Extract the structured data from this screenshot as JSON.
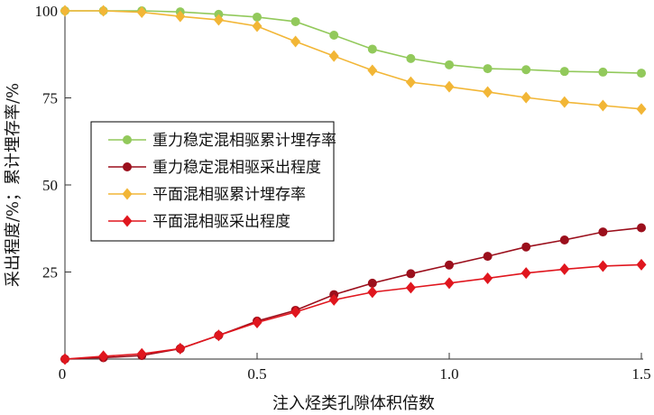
{
  "chart_data": {
    "type": "line",
    "title": "",
    "xlabel": "注入烃类孔隙体积倍数",
    "ylabel": "采出程度/%；累计埋存率/%",
    "xlim": [
      0,
      1.5
    ],
    "ylim": [
      0,
      100
    ],
    "xticks": [
      "0",
      "0.5",
      "1.0",
      "1.5"
    ],
    "xtick_values": [
      0,
      0.5,
      1.0,
      1.5
    ],
    "yticks": [
      "100",
      "75",
      "50",
      "25"
    ],
    "ytick_values": [
      100,
      75,
      50,
      25
    ],
    "legend_position": "center-left",
    "x": [
      0,
      0.1,
      0.2,
      0.3,
      0.4,
      0.5,
      0.6,
      0.7,
      0.8,
      0.9,
      1.0,
      1.1,
      1.2,
      1.3,
      1.4,
      1.5
    ],
    "series": [
      {
        "name": "重力稳定混相驱累计埋存率",
        "color": "#92c95b",
        "marker": "circle",
        "values": [
          100,
          100,
          100,
          99.7,
          99,
          98.2,
          96.9,
          93,
          89,
          86.3,
          84.5,
          83.4,
          83.1,
          82.6,
          82.4,
          82.1
        ]
      },
      {
        "name": "重力稳定混相驱采出程度",
        "color": "#9b0f1c",
        "marker": "circle",
        "values": [
          0,
          0.4,
          1,
          3,
          6.8,
          10.9,
          14,
          18.5,
          21.8,
          24.5,
          27,
          29.5,
          32.2,
          34.2,
          36.5,
          37.7
        ]
      },
      {
        "name": "平面混相驱累计埋存率",
        "color": "#f2b636",
        "marker": "diamond",
        "values": [
          100,
          100,
          99.6,
          98.4,
          97.4,
          95.6,
          91.2,
          87,
          82.9,
          79.5,
          78.2,
          76.7,
          75.1,
          73.8,
          72.8,
          71.8
        ]
      },
      {
        "name": "平面混相驱采出程度",
        "color": "#e0161e",
        "marker": "diamond",
        "values": [
          0,
          0.8,
          1.5,
          3,
          6.8,
          10.5,
          13.5,
          17,
          19.2,
          20.5,
          21.8,
          23.2,
          24.7,
          25.8,
          26.7,
          27.1
        ]
      }
    ]
  }
}
